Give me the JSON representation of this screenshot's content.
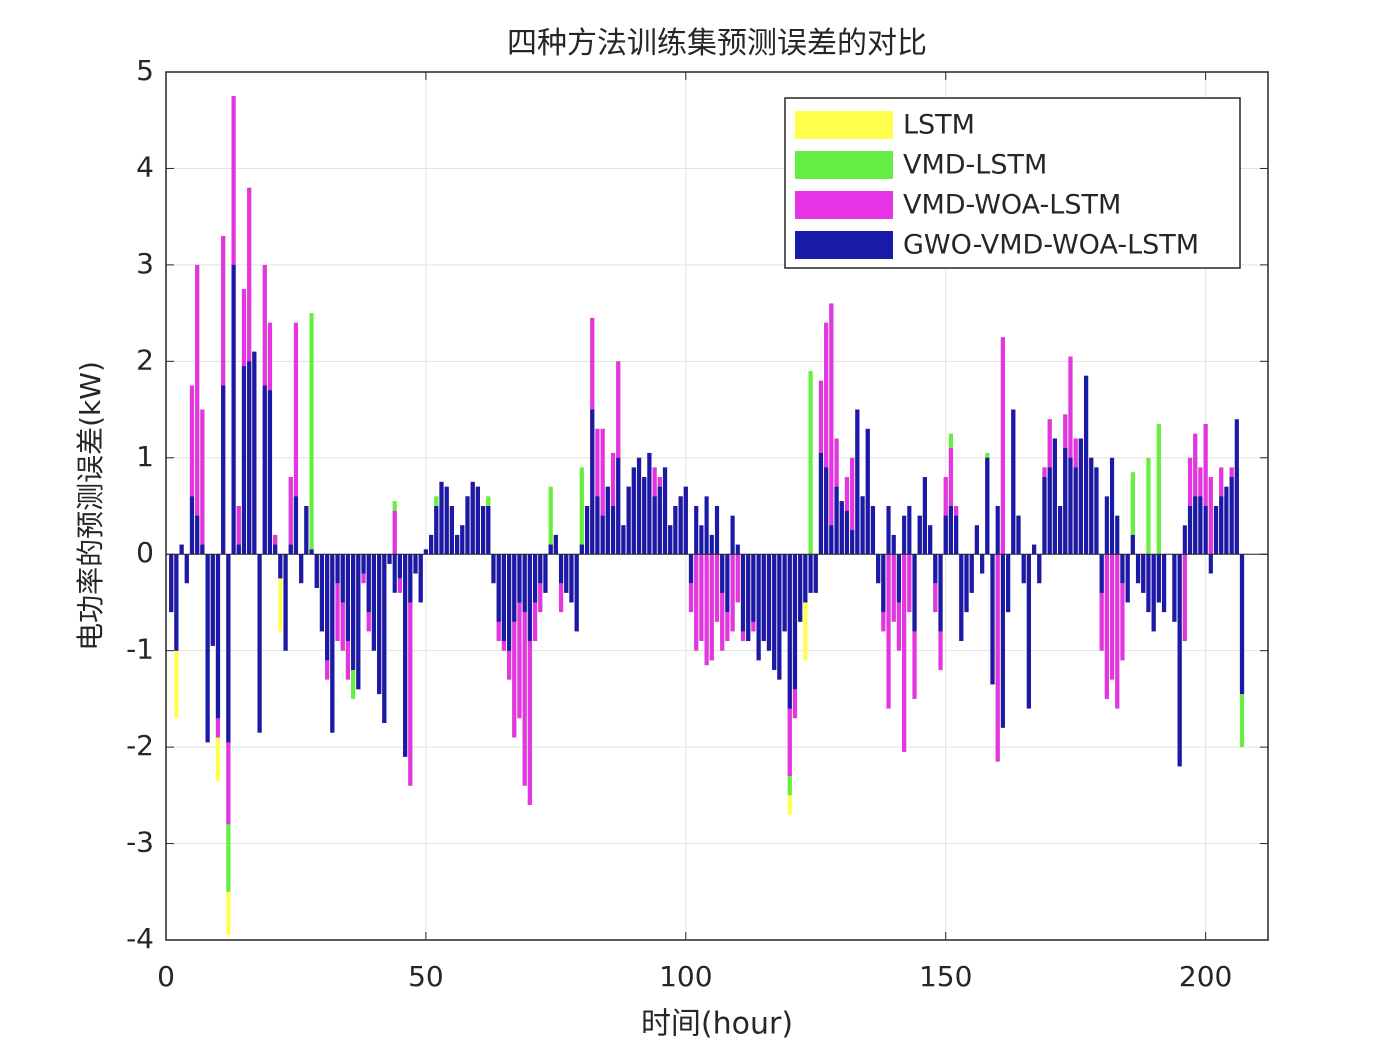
{
  "chart_data": {
    "type": "bar",
    "title": "四种方法训练集预测误差的对比",
    "x_label": "时间(hour)",
    "y_label": "电功率的预测误差(kW)",
    "xlim": [
      0,
      212
    ],
    "xticks": [
      0,
      50,
      100,
      150,
      200
    ],
    "ylim": [
      -4,
      5
    ],
    "yticks": [
      -4,
      -3,
      -2,
      -1,
      0,
      1,
      2,
      3,
      4,
      5
    ],
    "grid": true,
    "legend": "upper right",
    "x": [
      1,
      2,
      3,
      4,
      5,
      6,
      7,
      8,
      9,
      10,
      11,
      12,
      13,
      14,
      15,
      16,
      17,
      18,
      19,
      20,
      21,
      22,
      23,
      24,
      25,
      26,
      27,
      28,
      29,
      30,
      31,
      32,
      33,
      34,
      35,
      36,
      37,
      38,
      39,
      40,
      41,
      42,
      43,
      44,
      45,
      46,
      47,
      48,
      49,
      50,
      51,
      52,
      53,
      54,
      55,
      56,
      57,
      58,
      59,
      60,
      61,
      62,
      63,
      64,
      65,
      66,
      67,
      68,
      69,
      70,
      71,
      72,
      73,
      74,
      75,
      76,
      77,
      78,
      79,
      80,
      81,
      82,
      83,
      84,
      85,
      86,
      87,
      88,
      89,
      90,
      91,
      92,
      93,
      94,
      95,
      96,
      97,
      98,
      99,
      100,
      101,
      102,
      103,
      104,
      105,
      106,
      107,
      108,
      109,
      110,
      111,
      112,
      113,
      114,
      115,
      116,
      117,
      118,
      119,
      120,
      121,
      122,
      123,
      124,
      125,
      126,
      127,
      128,
      129,
      130,
      131,
      132,
      133,
      134,
      135,
      136,
      137,
      138,
      139,
      140,
      141,
      142,
      143,
      144,
      145,
      146,
      147,
      148,
      149,
      150,
      151,
      152,
      153,
      154,
      155,
      156,
      157,
      158,
      159,
      160,
      161,
      162,
      163,
      164,
      165,
      166,
      167,
      168,
      169,
      170,
      171,
      172,
      173,
      174,
      175,
      176,
      177,
      178,
      179,
      180,
      181,
      182,
      183,
      184,
      185,
      186,
      187,
      188,
      189,
      190,
      191,
      192,
      193,
      194,
      195,
      196,
      197,
      198,
      199,
      200,
      201,
      202,
      203,
      204,
      205,
      206,
      207
    ],
    "series": [
      {
        "name": "LSTM",
        "color": "#ffff4d",
        "values": [
          -0.6,
          -1.7,
          0.1,
          -0.3,
          1.75,
          3.0,
          1.5,
          -1.95,
          -0.95,
          -2.35,
          3.3,
          -3.95,
          4.75,
          0.5,
          2.75,
          3.8,
          2.1,
          -1.85,
          3.0,
          2.4,
          0.2,
          -0.8,
          -1.0,
          0.8,
          2.4,
          -0.3,
          0.5,
          2.5,
          -0.35,
          -0.8,
          -1.3,
          -1.85,
          -0.9,
          -1.0,
          -1.3,
          -1.5,
          -1.4,
          -0.3,
          -0.8,
          -1.0,
          -1.45,
          -1.75,
          -0.1,
          0.55,
          -0.4,
          -2.1,
          -2.4,
          -0.2,
          -0.5,
          0.05,
          0.2,
          0.6,
          0.75,
          0.7,
          0.5,
          0.2,
          0.3,
          0.6,
          0.75,
          0.7,
          0.5,
          0.6,
          -0.3,
          -0.9,
          -1.0,
          -1.3,
          -1.9,
          -1.7,
          -2.4,
          -2.6,
          -0.9,
          -0.6,
          -0.4,
          0.7,
          0.2,
          -0.6,
          -0.4,
          -0.5,
          -0.8,
          0.9,
          0.5,
          2.45,
          1.3,
          1.3,
          0.7,
          1.05,
          2.0,
          0.3,
          0.7,
          0.9,
          1.0,
          0.8,
          1.05,
          0.9,
          0.8,
          0.9,
          0.3,
          0.5,
          0.6,
          0.7,
          -0.6,
          -1.0,
          -0.9,
          -1.15,
          -1.1,
          -0.7,
          -1.0,
          -0.9,
          -0.8,
          -0.5,
          -0.9,
          -0.9,
          -0.8,
          -1.1,
          -0.9,
          -1.0,
          -1.2,
          -1.3,
          -0.8,
          -2.7,
          -1.7,
          -0.7,
          -1.1,
          1.9,
          -0.4,
          1.8,
          2.4,
          2.6,
          1.2,
          0.55,
          0.8,
          1.0,
          1.25,
          0.6,
          1.25,
          0.5,
          -0.3,
          -0.8,
          -1.6,
          -0.7,
          -1.0,
          -2.05,
          -0.6,
          -1.5,
          0.4,
          0.8,
          0.3,
          -0.6,
          -1.2,
          0.8,
          1.25,
          0.5,
          -0.9,
          -0.6,
          -0.4,
          0.3,
          -0.2,
          1.05,
          -1.35,
          -2.15,
          2.25,
          -0.6,
          1.5,
          0.4,
          -0.3,
          -1.6,
          0.1,
          -0.3,
          0.9,
          1.4,
          1.2,
          0.5,
          1.45,
          2.05,
          1.2,
          1.2,
          1.85,
          1.0,
          0.9,
          -1.0,
          -1.5,
          -1.3,
          -1.6,
          -1.1,
          -0.5,
          0.85,
          -0.3,
          -0.4,
          1.0,
          -0.8,
          1.35,
          -0.6,
          0.0,
          -0.7,
          -2.2,
          -0.85,
          1.0,
          1.25,
          0.9,
          1.35,
          0.8,
          0.5,
          0.9,
          0.6,
          0.9,
          0.9,
          -2.0
        ]
      },
      {
        "name": "VMD-LSTM",
        "color": "#66ee44",
        "values": [
          -0.6,
          -1.0,
          0.1,
          -0.3,
          1.75,
          3.0,
          1.5,
          -1.95,
          -0.95,
          -1.9,
          3.3,
          -3.5,
          4.75,
          0.5,
          2.75,
          3.8,
          2.1,
          -1.85,
          3.0,
          2.4,
          0.2,
          -0.25,
          -1.0,
          0.8,
          2.4,
          -0.3,
          0.5,
          2.5,
          -0.35,
          -0.8,
          -1.3,
          -1.85,
          -0.9,
          -1.0,
          -1.3,
          -1.5,
          -1.4,
          -0.3,
          -0.8,
          -1.0,
          -1.45,
          -1.75,
          -0.1,
          0.55,
          -0.4,
          -2.1,
          -2.4,
          -0.2,
          -0.5,
          0.05,
          0.2,
          0.6,
          0.75,
          0.7,
          0.5,
          0.2,
          0.3,
          0.6,
          0.75,
          0.7,
          0.5,
          0.6,
          -0.3,
          -0.9,
          -1.0,
          -1.3,
          -1.9,
          -1.7,
          -2.4,
          -2.6,
          -0.9,
          -0.6,
          -0.4,
          0.7,
          0.2,
          -0.6,
          -0.4,
          -0.5,
          -0.8,
          0.9,
          0.5,
          2.45,
          1.3,
          1.3,
          0.7,
          1.05,
          2.0,
          0.3,
          0.7,
          0.9,
          1.0,
          0.8,
          1.05,
          0.9,
          0.8,
          0.9,
          0.3,
          0.5,
          0.6,
          0.7,
          -0.6,
          -1.0,
          -0.9,
          -1.15,
          -1.1,
          -0.7,
          -1.0,
          -0.9,
          -0.8,
          -0.5,
          -0.9,
          -0.9,
          -0.8,
          -1.1,
          -0.9,
          -1.0,
          -1.2,
          -1.3,
          -0.8,
          -2.5,
          -1.7,
          -0.7,
          -0.5,
          1.9,
          -0.4,
          1.8,
          2.4,
          2.6,
          1.2,
          0.55,
          0.8,
          1.0,
          1.25,
          0.6,
          1.25,
          0.5,
          -0.3,
          -0.8,
          -1.6,
          -0.7,
          -1.0,
          -2.05,
          -0.6,
          -1.5,
          0.4,
          0.8,
          0.3,
          -0.6,
          -1.2,
          0.8,
          1.25,
          0.5,
          -0.9,
          -0.6,
          -0.4,
          0.3,
          -0.2,
          1.05,
          -1.35,
          -2.15,
          2.25,
          -0.6,
          1.5,
          0.4,
          -0.3,
          -1.6,
          0.1,
          -0.3,
          0.9,
          1.4,
          1.2,
          0.5,
          1.45,
          2.05,
          1.2,
          1.2,
          1.85,
          1.0,
          0.9,
          -1.0,
          -1.5,
          -1.3,
          -1.6,
          -1.1,
          -0.5,
          0.85,
          -0.3,
          -0.4,
          1.0,
          -0.8,
          1.35,
          -0.6,
          0.0,
          -0.7,
          -2.2,
          -0.9,
          1.0,
          1.25,
          0.9,
          1.35,
          0.8,
          0.5,
          0.9,
          0.6,
          0.9,
          0.9,
          -2.0
        ]
      },
      {
        "name": "VMD-WOA-LSTM",
        "color": "#e633e6",
        "values": [
          -0.6,
          -1.0,
          0.1,
          -0.3,
          1.75,
          3.0,
          1.5,
          -1.95,
          -0.95,
          -1.9,
          3.3,
          -2.8,
          4.75,
          0.5,
          2.75,
          3.8,
          2.1,
          -1.85,
          3.0,
          2.4,
          0.2,
          -0.25,
          -1.0,
          0.8,
          2.4,
          -0.3,
          0.5,
          0.05,
          -0.35,
          -0.8,
          -1.3,
          -1.85,
          -0.9,
          -1.0,
          -1.3,
          -0.9,
          -1.4,
          -0.3,
          -0.8,
          -1.0,
          -1.45,
          -1.75,
          -0.1,
          0.45,
          -0.4,
          -2.1,
          -2.4,
          -0.2,
          -0.5,
          0.05,
          0.2,
          0.5,
          0.75,
          0.7,
          0.5,
          0.2,
          0.3,
          0.6,
          0.75,
          0.7,
          0.5,
          0.5,
          -0.3,
          -0.9,
          -1.0,
          -1.3,
          -1.9,
          -1.7,
          -2.4,
          -2.6,
          -0.9,
          -0.6,
          -0.4,
          0.1,
          0.2,
          -0.6,
          -0.4,
          -0.5,
          -0.8,
          0.1,
          0.5,
          2.45,
          1.3,
          1.3,
          0.7,
          1.05,
          2.0,
          0.3,
          0.7,
          0.9,
          1.0,
          0.8,
          1.05,
          0.9,
          0.8,
          0.9,
          0.3,
          0.5,
          0.6,
          0.7,
          -0.6,
          -1.0,
          -0.9,
          -1.15,
          -1.1,
          -0.7,
          -1.0,
          -0.9,
          -0.8,
          -0.5,
          -0.9,
          -0.9,
          -0.8,
          -1.1,
          -0.9,
          -1.0,
          -1.2,
          -1.3,
          -0.8,
          -2.3,
          -1.7,
          -0.7,
          -0.5,
          -0.4,
          -0.4,
          1.8,
          2.4,
          2.6,
          1.2,
          0.55,
          0.8,
          1.0,
          1.5,
          0.6,
          1.3,
          0.5,
          -0.3,
          -0.8,
          -1.6,
          -0.7,
          -1.0,
          -2.05,
          -0.6,
          -1.5,
          0.4,
          0.8,
          0.3,
          -0.6,
          -1.2,
          0.8,
          1.1,
          0.5,
          -0.9,
          -0.6,
          -0.4,
          0.3,
          -0.2,
          1.0,
          -1.35,
          -2.15,
          2.25,
          -0.6,
          1.5,
          0.4,
          -0.3,
          -1.6,
          0.1,
          -0.3,
          0.9,
          1.4,
          1.2,
          0.5,
          1.45,
          2.05,
          1.2,
          1.2,
          1.85,
          1.0,
          0.9,
          -1.0,
          -1.5,
          -1.3,
          -1.6,
          -1.1,
          -0.5,
          0.2,
          -0.3,
          -0.4,
          -0.6,
          -0.8,
          -0.5,
          -0.6,
          0.0,
          -0.7,
          -2.2,
          -0.9,
          1.0,
          1.25,
          0.9,
          1.35,
          0.8,
          0.5,
          0.9,
          0.6,
          0.9,
          0.9,
          -1.45
        ]
      },
      {
        "name": "GWO-VMD-WOA-LSTM",
        "color": "#1a1aa8",
        "values": [
          -0.6,
          -1.0,
          0.1,
          -0.3,
          0.6,
          0.4,
          0.1,
          -1.95,
          -0.95,
          -1.7,
          1.75,
          -1.95,
          3.0,
          0.1,
          1.95,
          2.0,
          2.1,
          -1.85,
          1.75,
          1.7,
          0.1,
          -0.25,
          -1.0,
          0.1,
          0.6,
          -0.3,
          0.5,
          0.05,
          -0.35,
          -0.8,
          -1.1,
          -1.85,
          -0.3,
          -0.5,
          -0.9,
          -1.2,
          -1.4,
          -0.2,
          -0.6,
          -1.0,
          -1.45,
          -1.75,
          -0.1,
          -0.4,
          -0.25,
          -2.1,
          -0.5,
          -0.2,
          -0.5,
          0.05,
          0.2,
          0.5,
          0.75,
          0.7,
          0.5,
          0.2,
          0.3,
          0.6,
          0.75,
          0.7,
          0.5,
          0.5,
          -0.3,
          -0.7,
          -0.9,
          -1.0,
          -0.7,
          -0.5,
          -0.6,
          -0.9,
          -0.5,
          -0.3,
          -0.4,
          0.1,
          0.2,
          -0.3,
          -0.4,
          -0.5,
          -0.8,
          0.1,
          0.5,
          1.5,
          0.6,
          0.4,
          0.7,
          0.5,
          1.0,
          0.3,
          0.7,
          0.9,
          1.0,
          0.8,
          1.05,
          0.6,
          0.7,
          0.9,
          0.3,
          0.5,
          0.6,
          0.7,
          -0.3,
          0.5,
          0.3,
          0.6,
          0.2,
          0.5,
          -0.4,
          -0.6,
          0.4,
          0.1,
          -0.8,
          -0.9,
          -0.7,
          -1.1,
          -0.9,
          -1.0,
          -1.2,
          -1.3,
          -0.8,
          -1.6,
          -1.4,
          -0.7,
          -0.5,
          -0.4,
          -0.4,
          1.05,
          0.9,
          0.3,
          0.7,
          0.55,
          0.45,
          0.25,
          1.5,
          0.6,
          1.3,
          0.5,
          -0.3,
          -0.6,
          0.5,
          0.2,
          -0.5,
          0.4,
          0.5,
          -0.8,
          0.4,
          0.8,
          0.3,
          -0.3,
          -0.8,
          0.4,
          0.5,
          0.4,
          -0.9,
          -0.6,
          -0.4,
          0.3,
          -0.2,
          1.0,
          -1.35,
          0.5,
          -1.8,
          -0.6,
          1.5,
          0.4,
          -0.3,
          -1.6,
          0.1,
          -0.3,
          0.8,
          0.9,
          1.2,
          0.5,
          1.1,
          1.0,
          0.9,
          1.2,
          1.85,
          1.0,
          0.9,
          -0.4,
          0.6,
          1.0,
          0.4,
          -0.3,
          -0.5,
          0.2,
          -0.3,
          -0.4,
          -0.6,
          -0.8,
          -0.5,
          -0.6,
          0.0,
          -0.7,
          -2.2,
          0.3,
          0.5,
          0.6,
          0.6,
          0.5,
          -0.2,
          0.5,
          0.6,
          0.7,
          0.8,
          1.4,
          -1.45
        ]
      }
    ]
  }
}
